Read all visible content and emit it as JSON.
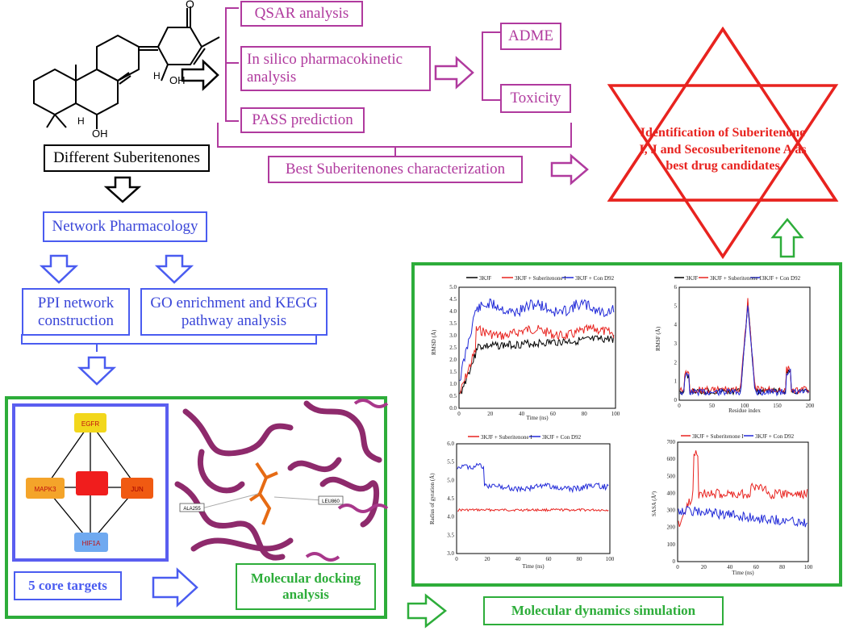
{
  "molecule": {
    "label": "Different Suberitenones",
    "atom_labels": [
      "O",
      "H",
      "OH",
      "H",
      "OH"
    ]
  },
  "pathway": {
    "qsar": "QSAR analysis",
    "pk": "In silico pharmacokinetic analysis",
    "pass": "PASS prediction",
    "adme": "ADME",
    "toxicity": "Toxicity",
    "best": "Best Suberitenones characterization"
  },
  "result": {
    "text": "Identification of Suberitenone I, J and Secosuberitenone A as best drug candidates"
  },
  "network": {
    "title": "Network Pharmacology",
    "ppi": "PPI network construction",
    "go": "GO enrichment and KEGG pathway analysis",
    "nodes": [
      "EGFR",
      "MAPK3",
      "JUN",
      "HIF1A",
      ""
    ],
    "core": "5 core targets"
  },
  "docking": {
    "title": "Molecular docking analysis",
    "residues": [
      "ALA255",
      "LEU860"
    ]
  },
  "md": {
    "title": "Molecular dynamics simulation",
    "rmsd": {
      "legend": [
        "3KJF",
        "3KJF + Suberitenone I",
        "3KJF + Con D92"
      ],
      "ylabel": "RMSD (Å)",
      "xlabel": "Time (ns)",
      "yticks": [
        "5.0",
        "4.5",
        "4.0",
        "3.5",
        "3.0",
        "2.5",
        "2.0",
        "1.5",
        "1.0",
        "0.5",
        "0.0"
      ],
      "xticks": [
        "0",
        "20",
        "40",
        "60",
        "80",
        "100"
      ]
    },
    "rmsf": {
      "legend": [
        "3KJF",
        "3KJF + Suberitenone I",
        "3KJF + Con D92"
      ],
      "ylabel": "RMSF (Å)",
      "xlabel": "Residue index",
      "yticks": [
        "6",
        "5",
        "4",
        "3",
        "2",
        "1",
        "0"
      ],
      "xticks": [
        "0",
        "50",
        "100",
        "150",
        "200"
      ]
    },
    "rg": {
      "legend": [
        "3KJF + Suberitenone I",
        "3KJF + Con D92"
      ],
      "ylabel": "Radius of gyration (Å)",
      "xlabel": "Time (ns)",
      "yticks": [
        "6.0",
        "5.5",
        "5.0",
        "4.5",
        "4.0",
        "3.5",
        "3.0"
      ],
      "xticks": [
        "0",
        "20",
        "40",
        "60",
        "80",
        "100"
      ]
    },
    "sasa": {
      "legend": [
        "3KJF + Suberitenone I",
        "3KJF + Con D92"
      ],
      "ylabel": "SASA (Å²)",
      "xlabel": "Time (ns)",
      "yticks": [
        "700",
        "600",
        "500",
        "400",
        "300",
        "200",
        "100",
        "0"
      ],
      "xticks": [
        "0",
        "20",
        "40",
        "60",
        "80",
        "100"
      ]
    }
  },
  "colors": {
    "magenta": "#b03a9e",
    "blue": "#4a5cf0",
    "green": "#2dad3a",
    "red": "#e8231f",
    "black": "#000000"
  }
}
